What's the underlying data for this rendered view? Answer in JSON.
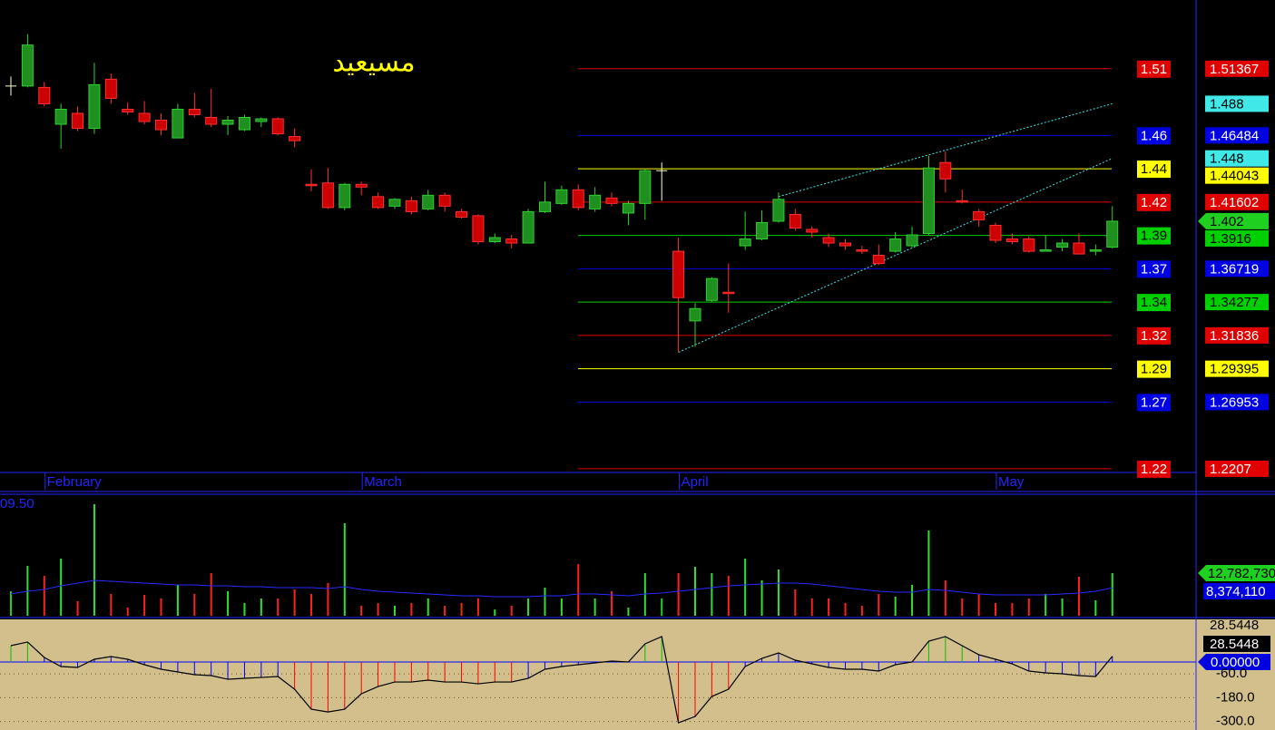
{
  "chart_data": [
    {
      "type": "candlestick",
      "title": "مسيعيد",
      "title_color": "#ffff00",
      "categories": [
        null,
        null,
        "February",
        null,
        null,
        null,
        null,
        null,
        null,
        null,
        null,
        null,
        null,
        null,
        null,
        null,
        null,
        null,
        null,
        null,
        null,
        "March",
        null,
        null,
        null,
        null,
        null,
        null,
        null,
        null,
        null,
        null,
        null,
        null,
        null,
        null,
        null,
        null,
        null,
        null,
        "April",
        null,
        null,
        null,
        null,
        null,
        null,
        null,
        null,
        null,
        null,
        null,
        null,
        null,
        null,
        null,
        null,
        null,
        null,
        "May",
        null,
        null,
        null,
        null,
        null,
        null,
        null
      ],
      "open": [
        1.501,
        1.501,
        1.5,
        1.473,
        1.481,
        1.47,
        1.506,
        1.484,
        1.481,
        1.476,
        1.463,
        1.484,
        1.478,
        1.473,
        1.469,
        1.475,
        1.477,
        1.464,
        1.429,
        1.43,
        1.412,
        1.429,
        1.42,
        1.413,
        1.417,
        1.411,
        1.421,
        1.409,
        1.406,
        1.387,
        1.389,
        1.386,
        1.409,
        1.415,
        1.425,
        1.411,
        1.419,
        1.408,
        1.415,
        1.439,
        1.38,
        1.329,
        1.344,
        1.35,
        1.384,
        1.389,
        1.402,
        1.407,
        1.396,
        1.39,
        1.386,
        1.381,
        1.377,
        1.38,
        1.384,
        1.393,
        1.445,
        1.417,
        1.409,
        1.399,
        1.389,
        1.389,
        1.38,
        1.383,
        1.386,
        1.38,
        1.383
      ],
      "high": [
        1.508,
        1.539,
        1.504,
        1.488,
        1.486,
        1.518,
        1.51,
        1.489,
        1.49,
        1.481,
        1.488,
        1.496,
        1.499,
        1.479,
        1.48,
        1.478,
        1.478,
        1.47,
        1.44,
        1.441,
        1.43,
        1.431,
        1.423,
        1.419,
        1.42,
        1.425,
        1.423,
        1.411,
        1.407,
        1.393,
        1.392,
        1.411,
        1.431,
        1.428,
        1.429,
        1.427,
        1.423,
        1.417,
        1.44,
        1.445,
        1.39,
        1.342,
        1.361,
        1.371,
        1.409,
        1.41,
        1.423,
        1.411,
        1.398,
        1.393,
        1.389,
        1.384,
        1.385,
        1.394,
        1.398,
        1.45,
        1.453,
        1.425,
        1.411,
        1.401,
        1.393,
        1.391,
        1.392,
        1.389,
        1.393,
        1.385,
        1.413
      ],
      "low": [
        1.494,
        1.5,
        1.486,
        1.455,
        1.468,
        1.466,
        1.488,
        1.48,
        1.473,
        1.465,
        1.463,
        1.478,
        1.471,
        1.465,
        1.468,
        1.471,
        1.465,
        1.456,
        1.424,
        1.411,
        1.41,
        1.421,
        1.411,
        1.411,
        1.407,
        1.41,
        1.409,
        1.404,
        1.385,
        1.386,
        1.382,
        1.386,
        1.408,
        1.414,
        1.41,
        1.409,
        1.413,
        1.399,
        1.403,
        1.417,
        1.306,
        1.31,
        1.343,
        1.335,
        1.381,
        1.388,
        1.401,
        1.395,
        1.39,
        1.383,
        1.381,
        1.378,
        1.37,
        1.379,
        1.383,
        1.392,
        1.423,
        1.415,
        1.398,
        1.386,
        1.385,
        1.379,
        1.38,
        1.38,
        1.378,
        1.377,
        1.382
      ],
      "close": [
        1.501,
        1.531,
        1.488,
        1.484,
        1.47,
        1.502,
        1.492,
        1.482,
        1.475,
        1.469,
        1.484,
        1.48,
        1.473,
        1.476,
        1.478,
        1.477,
        1.466,
        1.461,
        1.428,
        1.412,
        1.429,
        1.427,
        1.412,
        1.418,
        1.409,
        1.421,
        1.413,
        1.405,
        1.387,
        1.39,
        1.386,
        1.409,
        1.416,
        1.425,
        1.412,
        1.421,
        1.415,
        1.415,
        1.439,
        1.439,
        1.346,
        1.338,
        1.36,
        1.349,
        1.389,
        1.401,
        1.418,
        1.397,
        1.394,
        1.386,
        1.384,
        1.38,
        1.371,
        1.389,
        1.392,
        1.441,
        1.433,
        1.416,
        1.403,
        1.388,
        1.387,
        1.38,
        1.381,
        1.386,
        1.378,
        1.381,
        1.402
      ],
      "colors": {
        "up": "#1f8f1f",
        "up_edge": "#30d030",
        "down": "#cc0000",
        "down_edge": "#ff3030",
        "flat": "#ffffcc",
        "axis": "#2424ff",
        "last": "#20d020"
      },
      "ylim": [
        1.218,
        1.564
      ],
      "levels": [
        {
          "value": 1.51367,
          "short": "1.51",
          "color": "#e00000"
        },
        {
          "value": 1.46484,
          "short": "1.46",
          "color": "#0000e0"
        },
        {
          "value": 1.44043,
          "short": "1.44",
          "color": "#ffff00"
        },
        {
          "value": 1.41602,
          "short": "1.42",
          "color": "#e00000"
        },
        {
          "value": 1.3916,
          "short": "1.39",
          "color": "#00d000"
        },
        {
          "value": 1.36719,
          "short": "1.37",
          "color": "#0000e0"
        },
        {
          "value": 1.34277,
          "short": "1.34",
          "color": "#00d000"
        },
        {
          "value": 1.31836,
          "short": "1.32",
          "color": "#e00000"
        },
        {
          "value": 1.29395,
          "short": "1.29",
          "color": "#ffff00"
        },
        {
          "value": 1.26953,
          "short": "1.27",
          "color": "#0000e0"
        },
        {
          "value": 1.2207,
          "short": "1.22",
          "color": "#e00000"
        }
      ],
      "trendlines": [
        {
          "color": "#40e8e8",
          "x": [
            40,
            66
          ],
          "y": [
            1.306,
            1.448
          ]
        },
        {
          "color": "#40e8e8",
          "x": [
            46,
            66
          ],
          "y": [
            1.42,
            1.488
          ]
        }
      ]
    },
    {
      "type": "bar",
      "label": "09.50",
      "values": [
        7340000,
        14960000,
        11970000,
        17140000,
        4350000,
        33460000,
        6530000,
        2450000,
        6260000,
        5170000,
        9250000,
        6530000,
        12780000,
        7340000,
        3810000,
        5170000,
        5170000,
        7890000,
        6530000,
        9790000,
        27740000,
        2990000,
        3810000,
        2990000,
        3810000,
        5170000,
        2990000,
        3810000,
        5170000,
        1900000,
        2990000,
        5170000,
        8430000,
        5170000,
        15500000,
        5170000,
        7340000,
        2450000,
        12780000,
        5170000,
        12780000,
        14690000,
        12780000,
        11970000,
        17140000,
        10610000,
        13870000,
        7890000,
        5170000,
        5170000,
        3810000,
        2990000,
        6530000,
        5710000,
        9250000,
        25570000,
        10610000,
        5170000,
        6530000,
        3810000,
        3810000,
        5170000,
        6530000,
        5170000,
        11700000,
        4620000,
        12782730
      ],
      "value_labels": [
        null,
        null,
        null,
        null,
        null,
        null,
        null,
        null,
        null,
        null,
        null,
        null,
        null,
        null,
        null,
        null,
        null,
        null,
        null,
        null,
        null,
        null,
        null,
        null,
        null,
        null,
        null,
        null,
        null,
        null,
        null,
        null,
        null,
        null,
        null,
        null,
        null,
        null,
        null,
        null,
        null,
        null,
        null,
        null,
        null,
        null,
        null,
        null,
        null,
        null,
        null,
        null,
        null,
        null,
        null,
        null,
        null,
        null,
        null,
        null,
        null,
        null,
        null,
        null,
        null,
        null,
        "12,782,730"
      ],
      "color": "#20d020",
      "ma": {
        "color": "#2a2aff",
        "values": [
          6528000,
          7344000,
          7888000,
          8976000,
          9792000,
          10608000,
          10336000,
          10064000,
          9792000,
          9520000,
          9248000,
          9248000,
          8976000,
          8976000,
          8704000,
          8704000,
          8432000,
          8432000,
          8432000,
          8160000,
          8704000,
          7888000,
          7344000,
          7072000,
          6800000,
          6528000,
          6256000,
          5984000,
          5984000,
          5712000,
          5712000,
          5712000,
          5984000,
          5984000,
          6528000,
          6528000,
          6256000,
          5984000,
          6528000,
          6800000,
          7344000,
          7888000,
          8432000,
          8976000,
          9248000,
          9520000,
          9792000,
          9792000,
          9520000,
          8976000,
          8432000,
          7888000,
          7344000,
          7072000,
          7072000,
          7888000,
          7616000,
          7072000,
          6528000,
          6256000,
          6256000,
          6256000,
          6256000,
          6528000,
          6800000,
          7344000,
          8374110
        ],
        "value_labels": [
          null,
          null,
          null,
          null,
          null,
          null,
          null,
          null,
          null,
          null,
          null,
          null,
          null,
          null,
          null,
          null,
          null,
          null,
          null,
          null,
          null,
          null,
          null,
          null,
          null,
          null,
          null,
          null,
          null,
          null,
          null,
          null,
          null,
          null,
          null,
          null,
          null,
          null,
          null,
          null,
          null,
          null,
          null,
          null,
          null,
          null,
          null,
          null,
          null,
          null,
          null,
          null,
          null,
          null,
          null,
          null,
          null,
          null,
          null,
          null,
          null,
          null,
          null,
          null,
          null,
          null,
          "8,374,110"
        ]
      },
      "ylim": [
        0,
        36450000
      ]
    },
    {
      "type": "line",
      "values": [
        82.4,
        100.8,
        22.9,
        -22.9,
        -27.5,
        13.7,
        27.5,
        13.7,
        -13.7,
        -36.6,
        -50.4,
        -64.1,
        -68.7,
        -87.0,
        -82.4,
        -77.9,
        -73.3,
        -137.4,
        -238.2,
        -251.9,
        -238.2,
        -160.3,
        -123.7,
        -100.8,
        -100.8,
        -91.6,
        -100.8,
        -100.8,
        -109.9,
        -100.8,
        -100.8,
        -82.4,
        -36.6,
        -22.9,
        -13.7,
        -4.6,
        4.6,
        0,
        91.6,
        128.2,
        -306.9,
        -274.8,
        -174.0,
        -137.4,
        -22.9,
        18.3,
        45.8,
        9.2,
        -9.2,
        -27.5,
        -36.6,
        -36.6,
        -45.8,
        -13.7,
        0,
        105.3,
        128.2,
        82.4,
        36.6,
        13.7,
        -9.2,
        -45.8,
        -55.0,
        -59.5,
        -68.7,
        -73.3,
        28.5448
      ],
      "color": "#000000",
      "background": "#d2bf8c",
      "bar_colors": {
        "high": "#00c000",
        "mid": "#0000ff",
        "low": "#ff0000"
      },
      "ylim": [
        -343,
        215
      ],
      "yticks": [
        {
          "value": 0,
          "label": "0.00000"
        },
        {
          "value": -60,
          "label": "-60.0"
        },
        {
          "value": -180,
          "label": "-180.0"
        },
        {
          "value": -300,
          "label": "-300.0"
        }
      ]
    }
  ]
}
